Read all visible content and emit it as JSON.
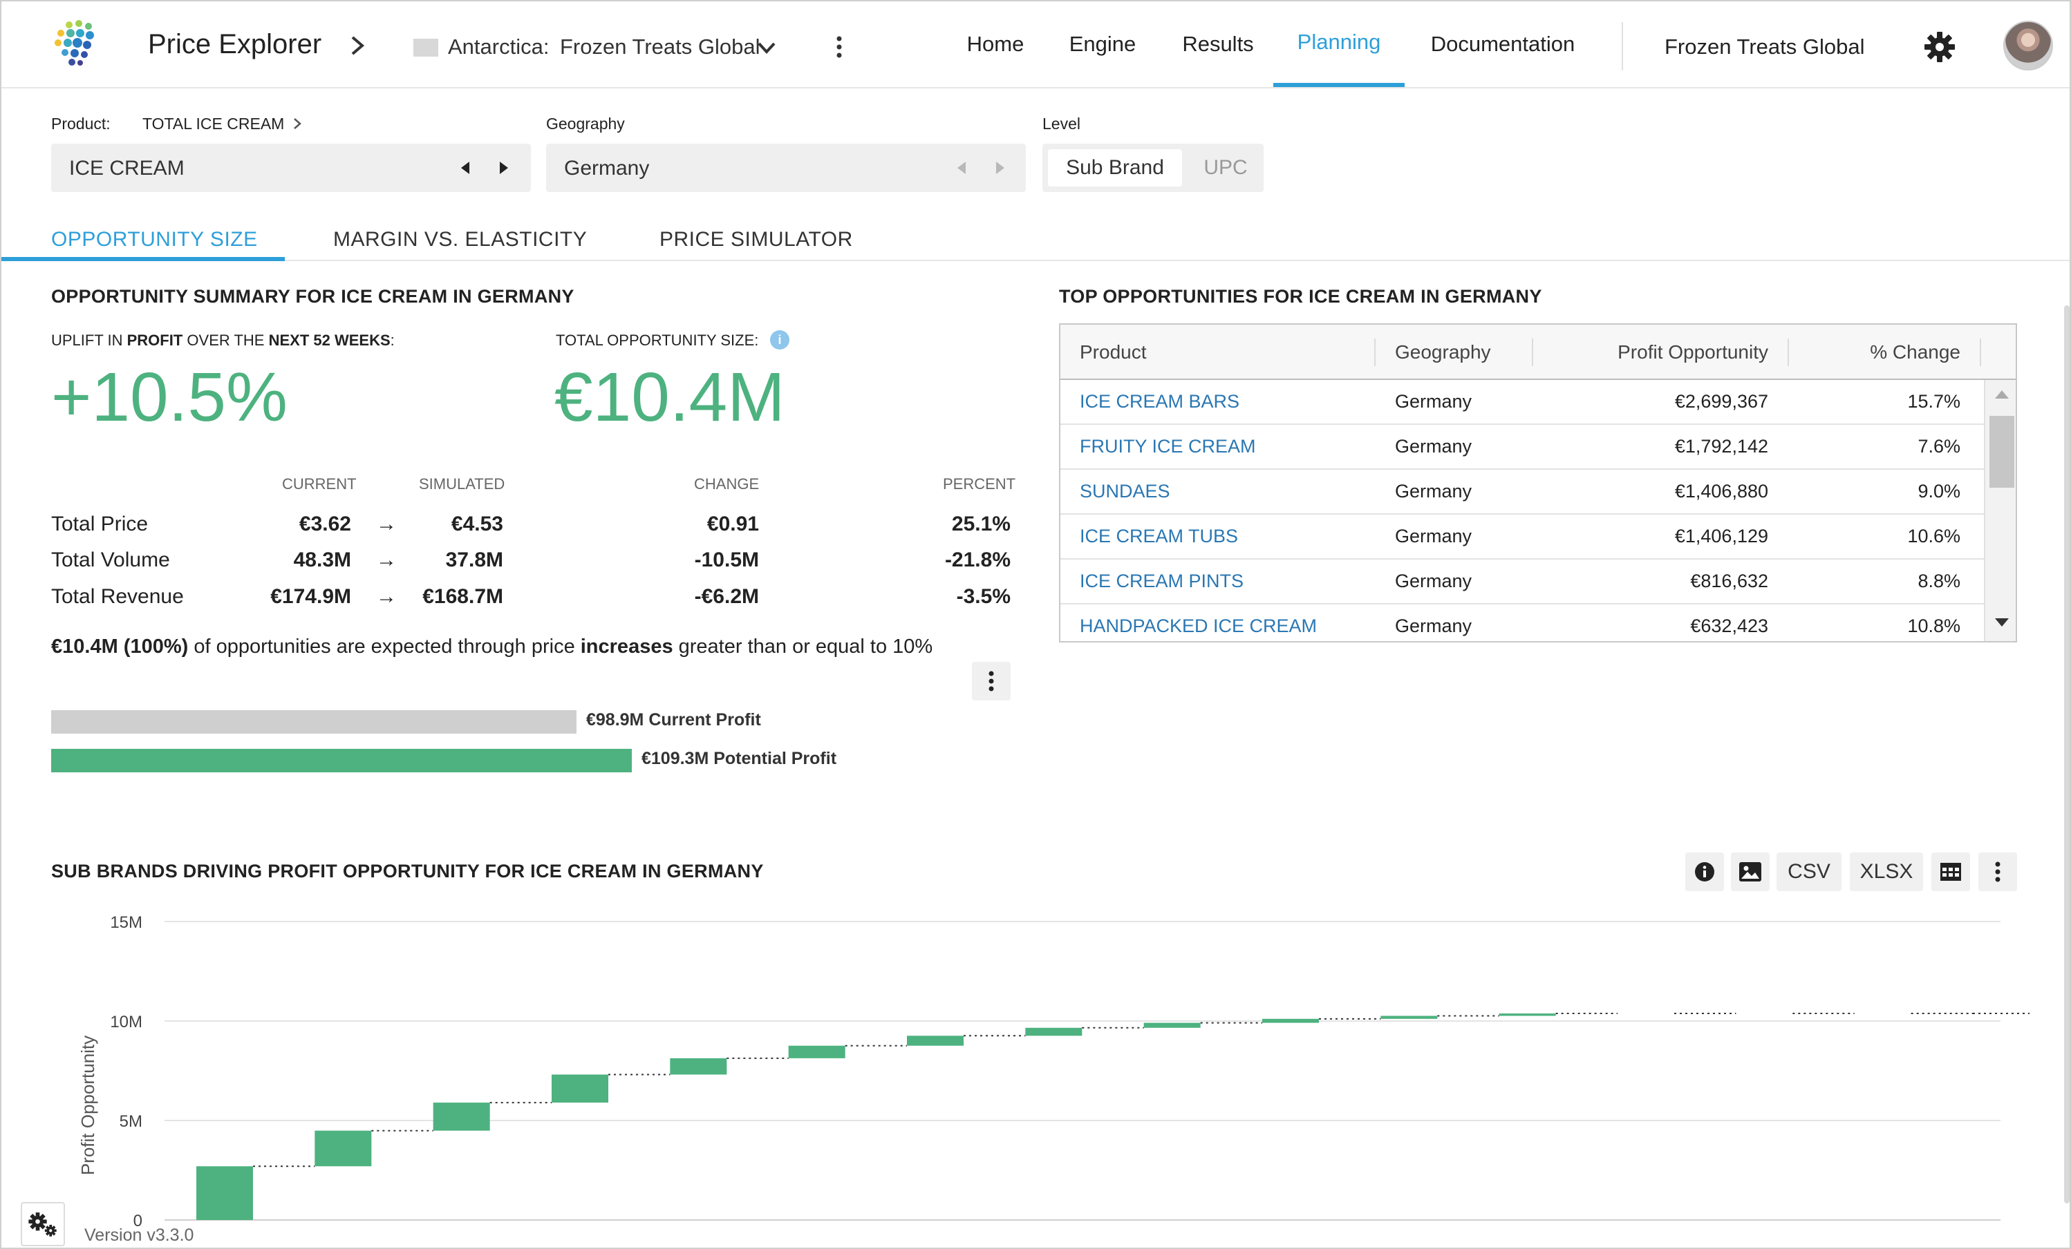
{
  "header": {
    "app_title": "Price Explorer",
    "tenant_label": "Antarctica:",
    "tenant_value": "Frozen Treats Global",
    "nav": [
      {
        "label": "Home",
        "active": false
      },
      {
        "label": "Engine",
        "active": false
      },
      {
        "label": "Results",
        "active": false
      },
      {
        "label": "Planning",
        "active": true
      },
      {
        "label": "Documentation",
        "active": false
      }
    ],
    "org_name": "Frozen Treats Global",
    "icons": {
      "logo": "dots-logo-icon",
      "settings": "gear-icon",
      "more": "kebab-icon",
      "avatar": "user-avatar"
    }
  },
  "filters": {
    "product_label": "Product:",
    "product_path": "TOTAL ICE CREAM",
    "product_value": "ICE CREAM",
    "geography_label": "Geography",
    "geography_value": "Germany",
    "level_label": "Level",
    "level_options": [
      {
        "label": "Sub Brand",
        "selected": true
      },
      {
        "label": "UPC",
        "selected": false
      }
    ]
  },
  "tabs": [
    {
      "label": "OPPORTUNITY SIZE",
      "active": true
    },
    {
      "label": "MARGIN VS. ELASTICITY",
      "active": false
    },
    {
      "label": "PRICE SIMULATOR",
      "active": false
    }
  ],
  "summary": {
    "title": "OPPORTUNITY SUMMARY FOR ICE CREAM IN GERMANY",
    "uplift_caption_parts": [
      "UPLIFT IN ",
      "PROFIT",
      " OVER THE ",
      "NEXT 52 WEEKS",
      ":"
    ],
    "uplift_value": "+10.5%",
    "total_caption": "TOTAL OPPORTUNITY SIZE:",
    "total_value": "€10.4M",
    "columns": {
      "current": "CURRENT",
      "simulated": "SIMULATED",
      "change": "CHANGE",
      "percent": "PERCENT"
    },
    "rows": [
      {
        "label": "Total Price",
        "current": "€3.62",
        "simulated": "€4.53",
        "change": "€0.91",
        "percent": "25.1%"
      },
      {
        "label": "Total Volume",
        "current": "48.3M",
        "simulated": "37.8M",
        "change": "-10.5M",
        "percent": "-21.8%"
      },
      {
        "label": "Total Revenue",
        "current": "€174.9M",
        "simulated": "€168.7M",
        "change": "-€6.2M",
        "percent": "-3.5%"
      }
    ],
    "arrow": "→",
    "statement_parts": [
      "€10.4M (100%)",
      " of opportunities are expected through price ",
      "increases",
      " greater than or equal to 10%"
    ],
    "profit_bars": {
      "current": {
        "label": "€98.9M Current Profit",
        "value": 98.9
      },
      "potential": {
        "label": "€109.3M Potential Profit",
        "value": 109.3
      }
    }
  },
  "top_opportunities": {
    "title": "TOP OPPORTUNITIES FOR ICE CREAM IN GERMANY",
    "headers": [
      "Product",
      "Geography",
      "Profit Opportunity",
      "% Change"
    ],
    "rows": [
      {
        "product": "ICE CREAM BARS",
        "geography": "Germany",
        "profit": "€2,699,367",
        "change": "15.7%"
      },
      {
        "product": "FRUITY ICE CREAM",
        "geography": "Germany",
        "profit": "€1,792,142",
        "change": "7.6%"
      },
      {
        "product": "SUNDAES",
        "geography": "Germany",
        "profit": "€1,406,880",
        "change": "9.0%"
      },
      {
        "product": "ICE CREAM TUBS",
        "geography": "Germany",
        "profit": "€1,406,129",
        "change": "10.6%"
      },
      {
        "product": "ICE CREAM PINTS",
        "geography": "Germany",
        "profit": "€816,632",
        "change": "8.8%"
      },
      {
        "product": "HANDPACKED ICE CREAM",
        "geography": "Germany",
        "profit": "€632,423",
        "change": "10.8%"
      }
    ]
  },
  "sub_brands": {
    "title": "SUB BRANDS DRIVING PROFIT OPPORTUNITY FOR ICE CREAM IN GERMANY",
    "buttons": {
      "csv": "CSV",
      "xlsx": "XLSX"
    },
    "icons": {
      "info": "info-icon",
      "image": "image-icon",
      "table": "table-icon",
      "more": "kebab-icon"
    }
  },
  "chart_data": {
    "type": "waterfall",
    "ylabel": "Profit Opportunity",
    "yticks": [
      "0",
      "5M",
      "10M",
      "15M"
    ],
    "ylim": [
      0,
      15000000
    ],
    "grid": true,
    "increments": [
      2700000,
      1790000,
      1410000,
      1410000,
      820000,
      630000,
      500000,
      400000,
      250000,
      200000,
      150000,
      120000,
      0,
      0,
      0,
      0
    ],
    "color": "#4db27f"
  },
  "footer": {
    "version": "Version v3.3.0"
  }
}
